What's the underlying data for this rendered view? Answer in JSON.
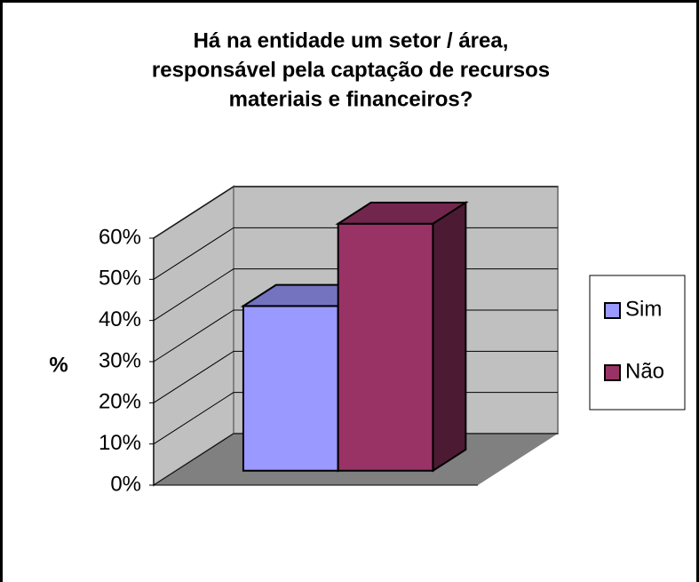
{
  "chart_data": {
    "type": "bar3d",
    "title": [
      "Há na entidade um setor / área,",
      "responsável pela captação de recursos",
      "materiais e financeiros?"
    ],
    "ylabel": "%",
    "categories": [
      null
    ],
    "series": [
      {
        "name": "Sim",
        "color": "#9999ff",
        "values": [
          40
        ]
      },
      {
        "name": "Não",
        "color": "#993366",
        "values": [
          60
        ]
      }
    ],
    "ylim": [
      0,
      60
    ],
    "yticks": [
      {
        "value": 0,
        "label": "0%"
      },
      {
        "value": 10,
        "label": "10%"
      },
      {
        "value": 20,
        "label": "20%"
      },
      {
        "value": 30,
        "label": "30%"
      },
      {
        "value": 40,
        "label": "40%"
      },
      {
        "value": 50,
        "label": "50%"
      },
      {
        "value": 60,
        "label": "60%"
      }
    ],
    "grid": true,
    "legend": "right"
  }
}
